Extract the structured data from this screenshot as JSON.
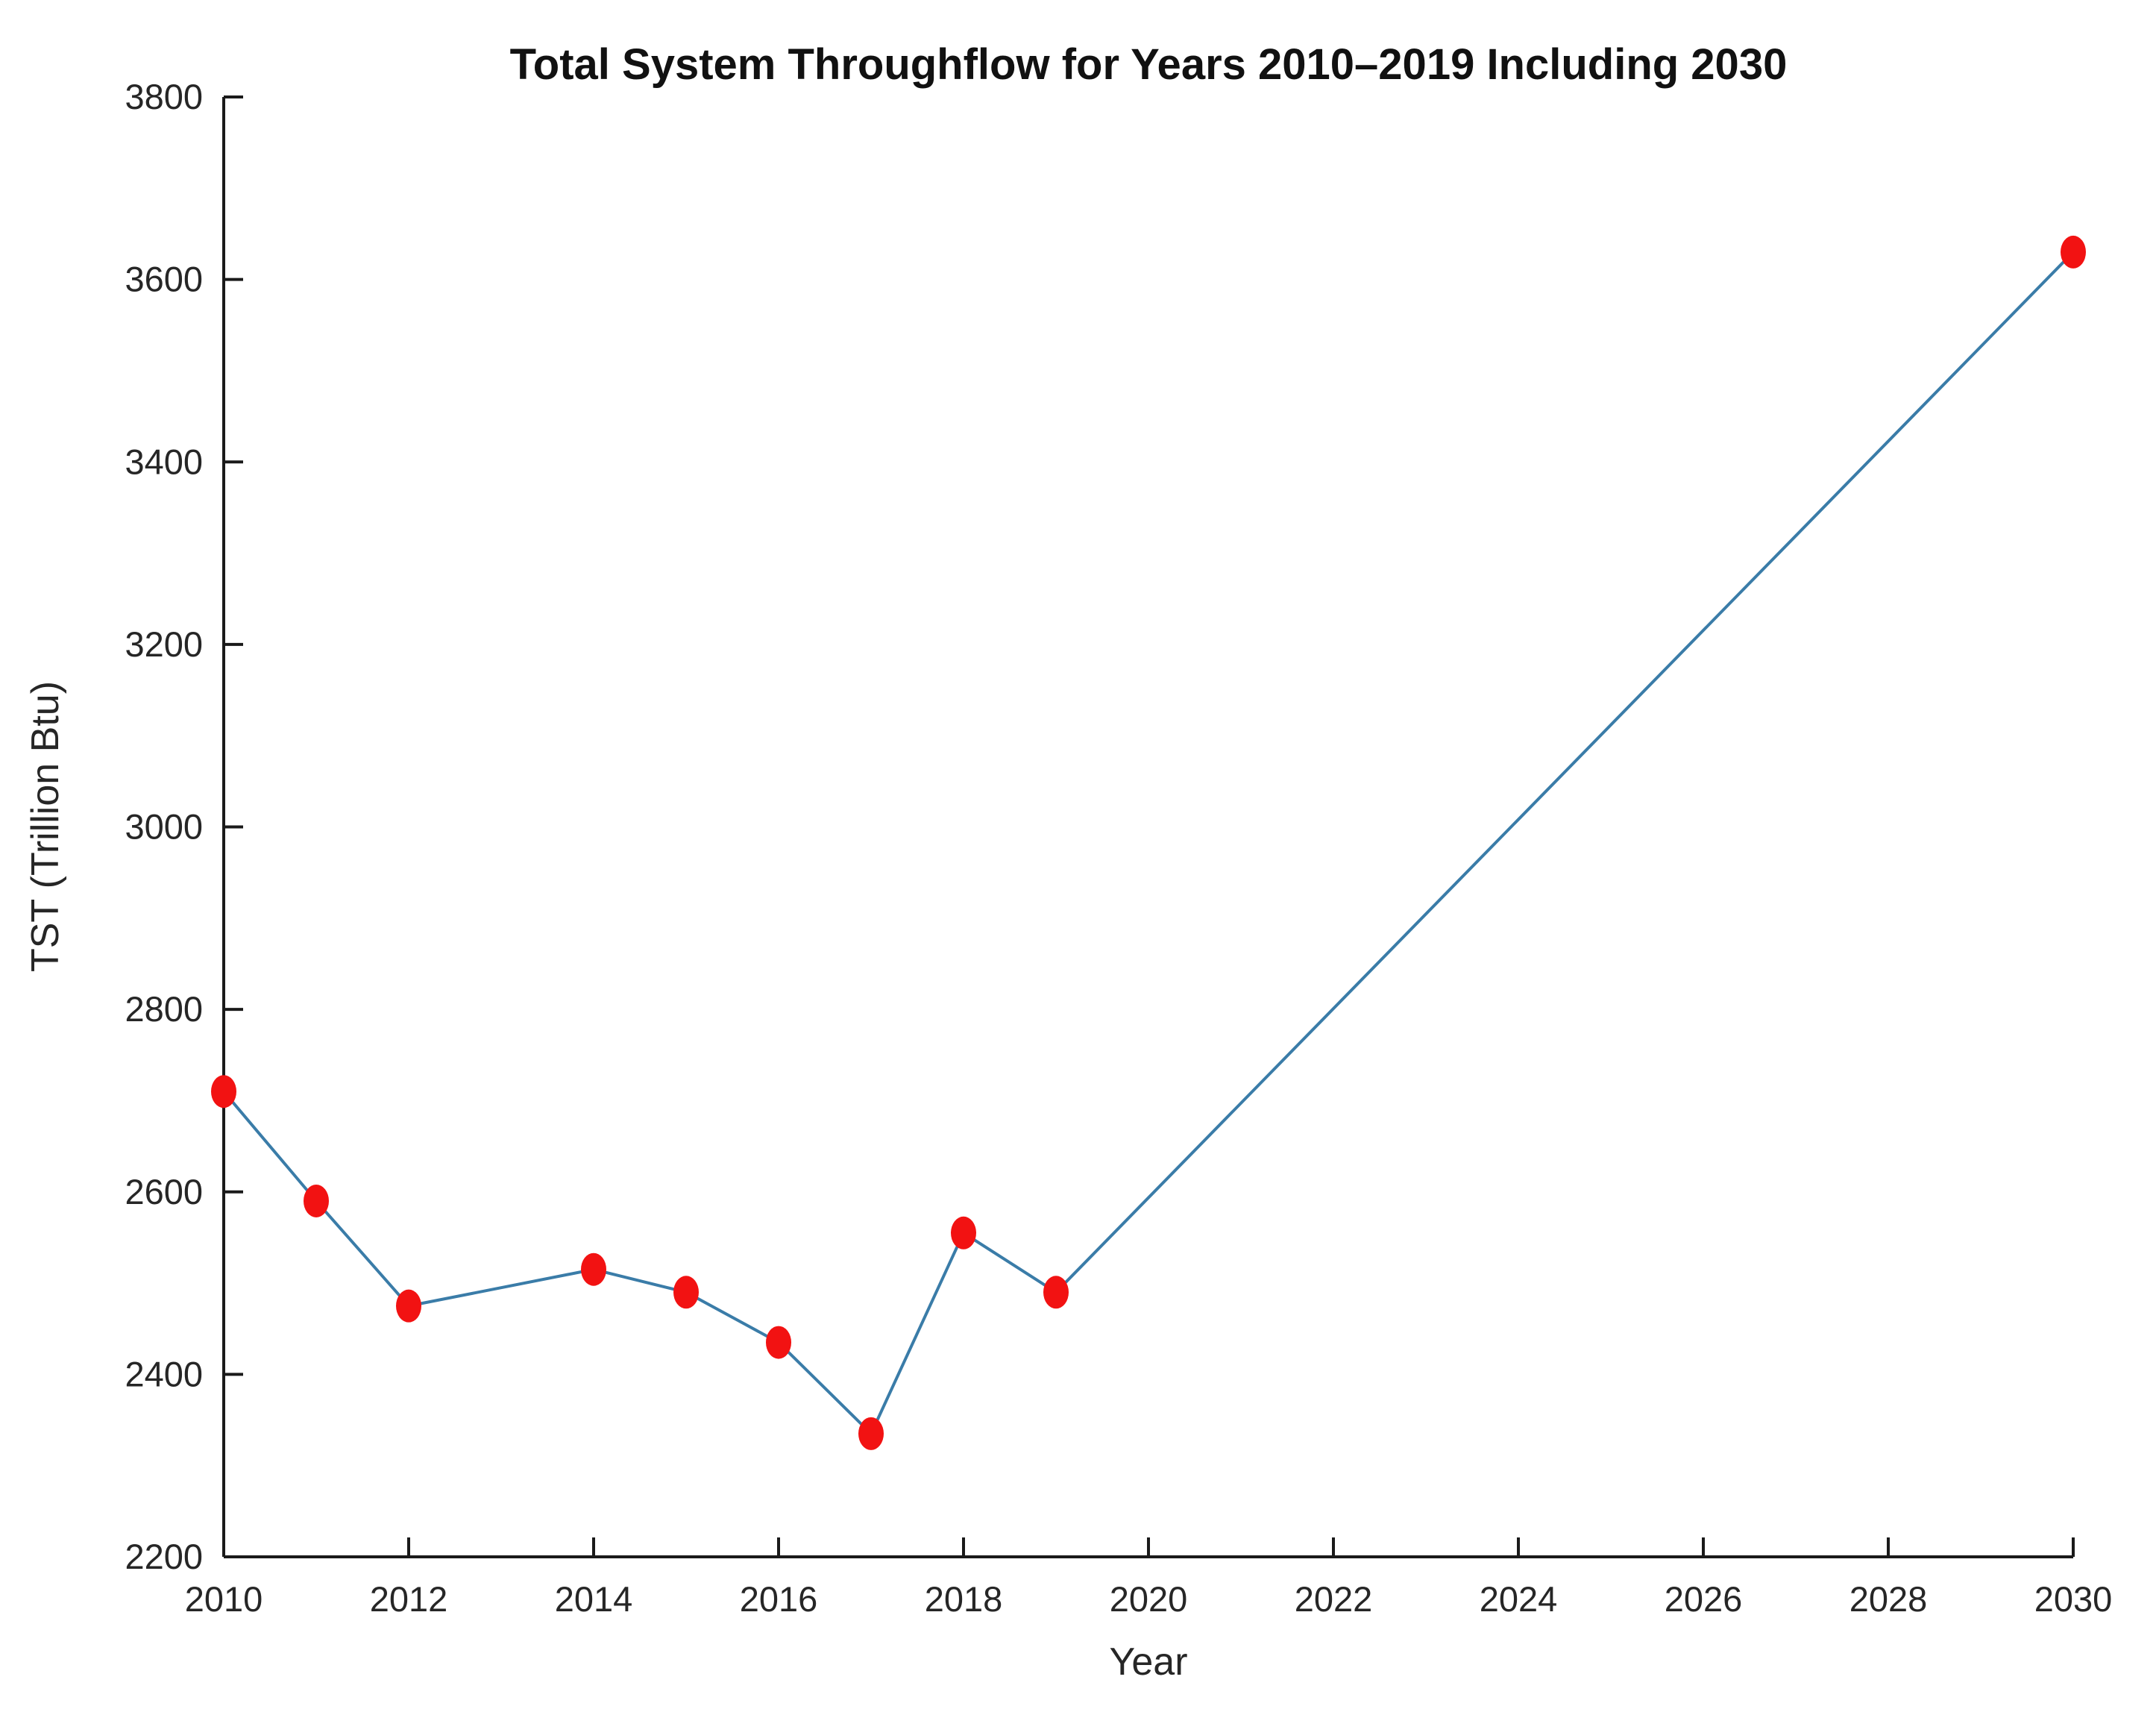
{
  "figure": {
    "background": "#FFFFFF",
    "axis_color": "#1A1A1A",
    "text_color": "#262626"
  },
  "chart_data": {
    "type": "line",
    "title": "Total System Throughflow for Years 2010–2019 Including 2030",
    "xlabel": "Year",
    "ylabel": "TST (Trillion Btu)",
    "x": [
      2010,
      2011,
      2012,
      2014,
      2015,
      2016,
      2017,
      2018,
      2019,
      2030
    ],
    "values": [
      2710,
      2590,
      2475,
      2515,
      2490,
      2435,
      2335,
      2555,
      2490,
      3630
    ],
    "series_name": "Total System Throughflow",
    "xlim": [
      2010,
      2030
    ],
    "ylim": [
      2200,
      3800
    ],
    "xticks": [
      2010,
      2012,
      2014,
      2016,
      2018,
      2020,
      2022,
      2024,
      2026,
      2028,
      2030
    ],
    "yticks": [
      2200,
      2400,
      2600,
      2800,
      3000,
      3200,
      3400,
      3600,
      3800
    ],
    "grid": false,
    "legend_position": "none",
    "tick_direction": "in",
    "line_color": "#3A7CA8",
    "marker": "filled-circle",
    "marker_color": "#F21212"
  }
}
